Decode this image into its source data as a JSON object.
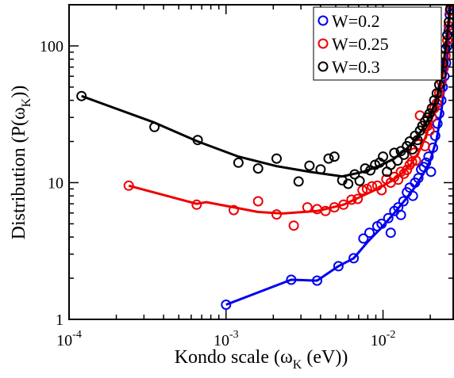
{
  "chart_data": {
    "type": "scatter",
    "xscale": "log",
    "yscale": "log",
    "xlim": [
      0.0001,
      0.028
    ],
    "ylim": [
      1,
      200
    ],
    "xlabel": {
      "main": "Kondo scale (ω",
      "sub": "K",
      "tail": " (eV))"
    },
    "ylabel": {
      "main": "Distribution (P(ω",
      "sub": "K",
      "tail": "))"
    },
    "xticks": [
      {
        "value": 0.0001,
        "base": "10",
        "exp": "-4"
      },
      {
        "value": 0.001,
        "base": "10",
        "exp": "-3"
      },
      {
        "value": 0.01,
        "base": "10",
        "exp": "-2"
      }
    ],
    "yticks": [
      {
        "value": 1,
        "label": "1"
      },
      {
        "value": 10,
        "label": "10"
      },
      {
        "value": 100,
        "label": "100"
      }
    ],
    "grid": false,
    "legend_position": "top-right",
    "series": [
      {
        "name": "W=0.2",
        "color": "#0000ee",
        "points": [
          [
            0.001,
            1.28
          ],
          [
            0.0026,
            1.95
          ],
          [
            0.0038,
            1.92
          ],
          [
            0.0052,
            2.45
          ],
          [
            0.0065,
            2.8
          ],
          [
            0.0075,
            3.9
          ],
          [
            0.0082,
            4.3
          ],
          [
            0.0092,
            4.8
          ],
          [
            0.0098,
            5.0
          ],
          [
            0.0108,
            5.5
          ],
          [
            0.0112,
            4.3
          ],
          [
            0.0118,
            6.2
          ],
          [
            0.0125,
            6.6
          ],
          [
            0.013,
            5.8
          ],
          [
            0.0135,
            7.3
          ],
          [
            0.0142,
            8.5
          ],
          [
            0.0148,
            9.2
          ],
          [
            0.0155,
            8.0
          ],
          [
            0.016,
            10.0
          ],
          [
            0.0168,
            10.8
          ],
          [
            0.0175,
            12.5
          ],
          [
            0.0182,
            13.0
          ],
          [
            0.0188,
            14.0
          ],
          [
            0.0195,
            15.5
          ],
          [
            0.0202,
            12.0
          ],
          [
            0.0208,
            18.0
          ],
          [
            0.0215,
            22.0
          ],
          [
            0.0222,
            27.0
          ],
          [
            0.0228,
            32.0
          ],
          [
            0.0235,
            40.0
          ],
          [
            0.024,
            50.0
          ],
          [
            0.0246,
            60.0
          ],
          [
            0.0252,
            75.0
          ],
          [
            0.0258,
            100.0
          ],
          [
            0.0262,
            130.0
          ],
          [
            0.0266,
            170.0
          ],
          [
            0.027,
            200.0
          ]
        ],
        "line": [
          [
            0.001,
            1.28
          ],
          [
            0.0026,
            1.95
          ],
          [
            0.0038,
            1.92
          ],
          [
            0.0052,
            2.45
          ],
          [
            0.0065,
            2.8
          ],
          [
            0.008,
            3.7
          ],
          [
            0.0098,
            4.7
          ],
          [
            0.0118,
            6.0
          ],
          [
            0.014,
            7.6
          ],
          [
            0.016,
            9.3
          ],
          [
            0.018,
            11.5
          ],
          [
            0.02,
            14.5
          ],
          [
            0.022,
            21.0
          ],
          [
            0.0235,
            33.0
          ],
          [
            0.0248,
            55.0
          ],
          [
            0.026,
            100.0
          ],
          [
            0.0268,
            200.0
          ]
        ]
      },
      {
        "name": "W=0.25",
        "color": "#ee0000",
        "points": [
          [
            0.00024,
            9.5
          ],
          [
            0.00065,
            6.9
          ],
          [
            0.00112,
            6.3
          ],
          [
            0.0016,
            7.3
          ],
          [
            0.0021,
            5.85
          ],
          [
            0.0027,
            4.85
          ],
          [
            0.0033,
            6.6
          ],
          [
            0.0038,
            6.4
          ],
          [
            0.0043,
            6.2
          ],
          [
            0.0049,
            6.6
          ],
          [
            0.0056,
            6.9
          ],
          [
            0.0063,
            7.5
          ],
          [
            0.0069,
            7.6
          ],
          [
            0.0074,
            8.8
          ],
          [
            0.0079,
            9.0
          ],
          [
            0.0085,
            9.4
          ],
          [
            0.0092,
            9.5
          ],
          [
            0.0098,
            8.8
          ],
          [
            0.0105,
            10.6
          ],
          [
            0.0112,
            10.0
          ],
          [
            0.0118,
            11.0
          ],
          [
            0.0125,
            10.5
          ],
          [
            0.013,
            12.0
          ],
          [
            0.0136,
            11.6
          ],
          [
            0.0142,
            12.4
          ],
          [
            0.0148,
            13.5
          ],
          [
            0.0153,
            14.2
          ],
          [
            0.0158,
            16.5
          ],
          [
            0.0162,
            14.5
          ],
          [
            0.0168,
            19.0
          ],
          [
            0.0172,
            31.0
          ],
          [
            0.0178,
            22.0
          ],
          [
            0.0185,
            18.5
          ],
          [
            0.0192,
            26.0
          ],
          [
            0.0198,
            24.0
          ],
          [
            0.0205,
            30.0
          ],
          [
            0.0212,
            35.0
          ],
          [
            0.022,
            38.0
          ],
          [
            0.0228,
            45.0
          ],
          [
            0.0236,
            55.0
          ],
          [
            0.0243,
            68.0
          ],
          [
            0.025,
            85.0
          ],
          [
            0.0257,
            110.0
          ],
          [
            0.0262,
            140.0
          ],
          [
            0.0268,
            180.0
          ]
        ],
        "line": [
          [
            0.00024,
            9.5
          ],
          [
            0.00065,
            7.0
          ],
          [
            0.00075,
            7.2
          ],
          [
            0.00112,
            6.6
          ],
          [
            0.0016,
            6.1
          ],
          [
            0.0023,
            5.95
          ],
          [
            0.0038,
            6.2
          ],
          [
            0.0056,
            6.9
          ],
          [
            0.0074,
            8.0
          ],
          [
            0.0092,
            9.0
          ],
          [
            0.0112,
            10.2
          ],
          [
            0.013,
            11.5
          ],
          [
            0.015,
            13.6
          ],
          [
            0.0168,
            16.5
          ],
          [
            0.0185,
            21.0
          ],
          [
            0.02,
            27.0
          ],
          [
            0.0215,
            35.0
          ],
          [
            0.023,
            48.0
          ],
          [
            0.0245,
            70.0
          ],
          [
            0.0258,
            110.0
          ],
          [
            0.0268,
            200.0
          ]
        ]
      },
      {
        "name": "W=0.3",
        "color": "#000000",
        "points": [
          [
            0.00012,
            43.0
          ],
          [
            0.00035,
            25.5
          ],
          [
            0.00066,
            20.5
          ],
          [
            0.0012,
            14.0
          ],
          [
            0.0016,
            12.7
          ],
          [
            0.0021,
            15.0
          ],
          [
            0.0029,
            10.2
          ],
          [
            0.0034,
            13.3
          ],
          [
            0.004,
            12.5
          ],
          [
            0.0045,
            15.0
          ],
          [
            0.0049,
            15.5
          ],
          [
            0.0055,
            10.4
          ],
          [
            0.006,
            9.8
          ],
          [
            0.0066,
            11.5
          ],
          [
            0.0071,
            10.3
          ],
          [
            0.0077,
            12.7
          ],
          [
            0.0083,
            12.3
          ],
          [
            0.0089,
            13.5
          ],
          [
            0.0095,
            14.0
          ],
          [
            0.01,
            15.5
          ],
          [
            0.0106,
            12.0
          ],
          [
            0.0112,
            13.5
          ],
          [
            0.0118,
            16.5
          ],
          [
            0.0124,
            14.5
          ],
          [
            0.013,
            17.0
          ],
          [
            0.0136,
            16.0
          ],
          [
            0.0142,
            18.5
          ],
          [
            0.0148,
            20.0
          ],
          [
            0.0154,
            17.5
          ],
          [
            0.016,
            22.0
          ],
          [
            0.0166,
            20.5
          ],
          [
            0.0172,
            24.0
          ],
          [
            0.0178,
            26.0
          ],
          [
            0.0185,
            28.0
          ],
          [
            0.0192,
            30.0
          ],
          [
            0.0198,
            32.0
          ],
          [
            0.0205,
            35.0
          ],
          [
            0.0212,
            40.0
          ],
          [
            0.022,
            45.0
          ],
          [
            0.0228,
            52.0
          ],
          [
            0.0236,
            62.0
          ],
          [
            0.0243,
            75.0
          ],
          [
            0.025,
            95.0
          ],
          [
            0.0257,
            120.0
          ],
          [
            0.0263,
            150.0
          ],
          [
            0.0268,
            185.0
          ]
        ],
        "line": [
          [
            0.00012,
            43.0
          ],
          [
            0.00035,
            27.5
          ],
          [
            0.00066,
            20.0
          ],
          [
            0.0012,
            15.5
          ],
          [
            0.0021,
            13.2
          ],
          [
            0.0034,
            12.0
          ],
          [
            0.0055,
            11.1
          ],
          [
            0.0075,
            12.0
          ],
          [
            0.0095,
            13.3
          ],
          [
            0.0118,
            15.0
          ],
          [
            0.014,
            17.5
          ],
          [
            0.016,
            20.5
          ],
          [
            0.018,
            25.0
          ],
          [
            0.02,
            31.0
          ],
          [
            0.022,
            42.0
          ],
          [
            0.0236,
            60.0
          ],
          [
            0.025,
            95.0
          ],
          [
            0.026,
            140.0
          ],
          [
            0.0268,
            200.0
          ]
        ]
      }
    ]
  }
}
